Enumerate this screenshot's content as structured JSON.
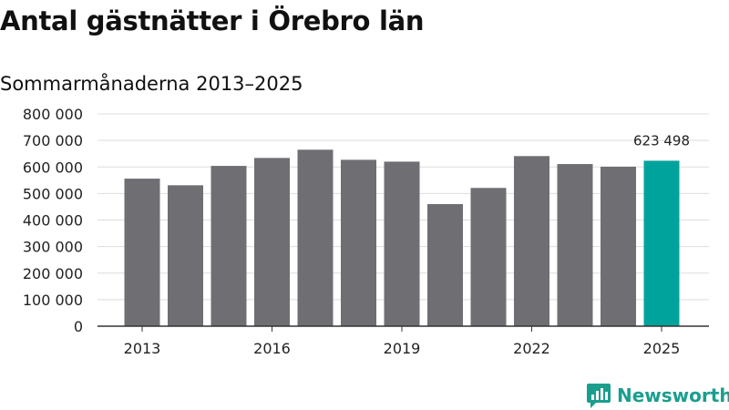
{
  "title": "Antal gästnätter i Örebro län",
  "subtitle": "Sommarmånaderna 2013–2025",
  "brand": {
    "name": "Newsworthy",
    "color": "#1a9e8e",
    "icon": "newsworthy-logo-icon"
  },
  "colors": {
    "bar": "#6f6e73",
    "highlight": "#00a39b",
    "grid": "#dddddd",
    "axis": "#333333"
  },
  "chart_data": {
    "type": "bar",
    "x": [
      2013,
      2014,
      2015,
      2016,
      2017,
      2018,
      2019,
      2020,
      2021,
      2022,
      2023,
      2024,
      2025
    ],
    "values": [
      556000,
      531000,
      604000,
      634000,
      665000,
      627000,
      620000,
      460000,
      521000,
      641000,
      611000,
      601000,
      623498
    ],
    "highlight": {
      "x": 2025,
      "label": "623 498"
    },
    "x_tick_labels": [
      "2013",
      "2016",
      "2019",
      "2022",
      "2025"
    ],
    "y_tick_labels": [
      "0",
      "100 000",
      "200 000",
      "300 000",
      "400 000",
      "500 000",
      "600 000",
      "700 000",
      "800 000"
    ],
    "ylim": [
      0,
      800000
    ],
    "grid": true,
    "xlabel": "",
    "ylabel": ""
  }
}
